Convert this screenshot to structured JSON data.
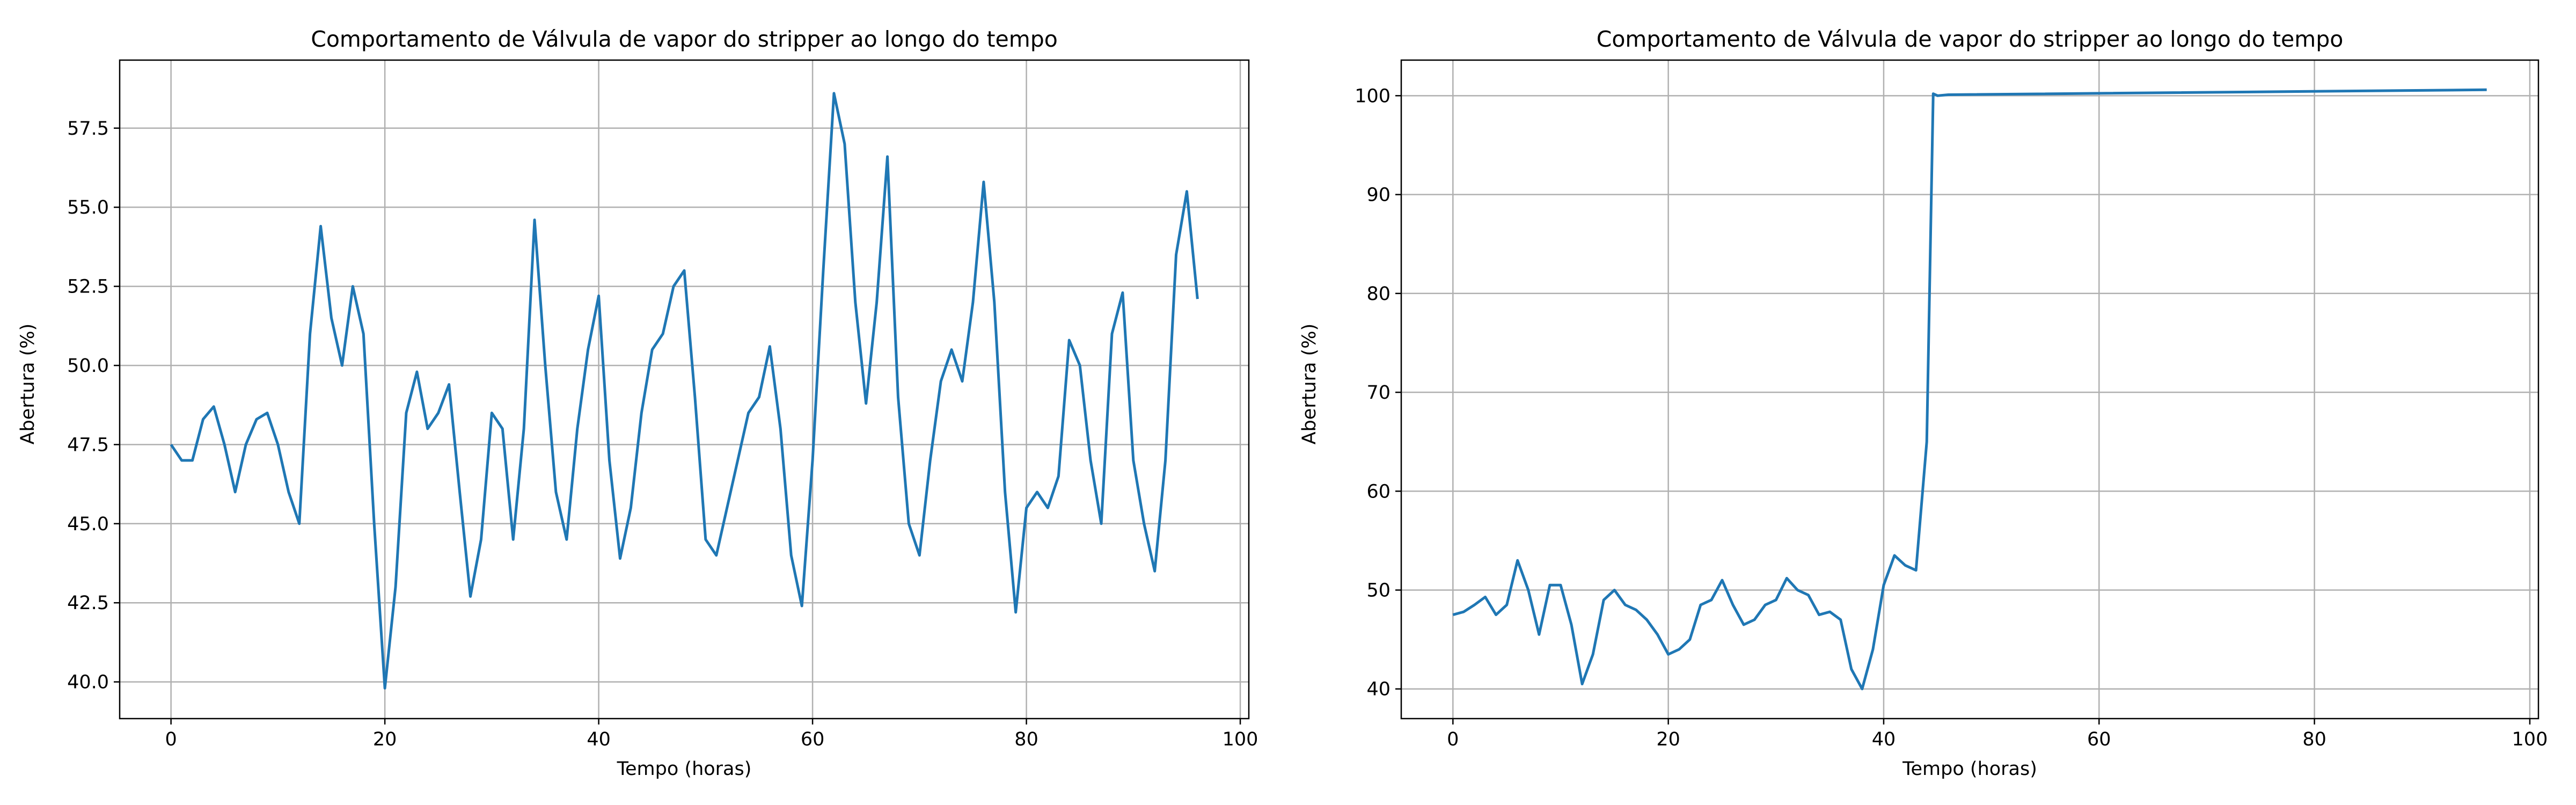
{
  "chart_data": [
    {
      "type": "line",
      "title": "Comportamento de Válvula de vapor do stripper ao longo do tempo",
      "x_label": "Tempo (horas)",
      "y_label": "Abertura (%)",
      "color": "#1f77b4",
      "grid": true,
      "x": [
        0,
        1,
        2,
        3,
        4,
        5,
        6,
        7,
        8,
        9,
        10,
        11,
        12,
        13,
        14,
        15,
        16,
        17,
        18,
        19,
        20,
        21,
        22,
        23,
        24,
        25,
        26,
        27,
        28,
        29,
        30,
        31,
        32,
        33,
        34,
        35,
        36,
        37,
        38,
        39,
        40,
        41,
        42,
        43,
        44,
        45,
        46,
        47,
        48,
        49,
        50,
        51,
        52,
        53,
        54,
        55,
        56,
        57,
        58,
        59,
        60,
        61,
        62,
        63,
        64,
        65,
        66,
        67,
        68,
        69,
        70,
        71,
        72,
        73,
        74,
        75,
        76,
        77,
        78,
        79,
        80,
        81,
        82,
        83,
        84,
        85,
        86,
        87,
        88,
        89,
        90,
        91,
        92,
        93,
        94,
        95,
        96
      ],
      "values": [
        47.5,
        47.0,
        47.0,
        48.3,
        48.7,
        47.5,
        46.0,
        47.5,
        48.3,
        48.5,
        47.5,
        46.0,
        45.0,
        51.0,
        54.4,
        51.5,
        50.0,
        52.5,
        51.0,
        45.0,
        39.8,
        43.0,
        48.5,
        49.8,
        48.0,
        48.5,
        49.4,
        46.0,
        42.7,
        44.5,
        48.5,
        48.0,
        44.5,
        48.0,
        54.6,
        50.0,
        46.0,
        44.5,
        48.0,
        50.5,
        52.2,
        47.0,
        43.9,
        45.5,
        48.5,
        50.5,
        51.0,
        52.5,
        53.0,
        49.0,
        44.5,
        44.0,
        45.5,
        47.0,
        48.5,
        49.0,
        50.6,
        48.0,
        44.0,
        42.4,
        47.0,
        53.0,
        58.6,
        57.0,
        52.0,
        48.8,
        52.0,
        56.6,
        49.0,
        45.0,
        44.0,
        47.0,
        49.5,
        50.5,
        49.5,
        52.0,
        55.8,
        52.0,
        46.0,
        42.2,
        45.5,
        46.0,
        45.5,
        46.5,
        50.8,
        50.0,
        47.0,
        45.0,
        51.0,
        52.3,
        47.0,
        45.0,
        43.5,
        47.0,
        53.5,
        55.5,
        52.1
      ],
      "xlim": [
        -4.8,
        100.8
      ],
      "xticks": [
        0,
        20,
        40,
        60,
        80,
        100
      ],
      "ylim": [
        38.84,
        59.65
      ],
      "yticks": [
        {
          "value": 40,
          "label": "40.0"
        },
        42.5,
        {
          "value": 45,
          "label": "45.0"
        },
        47.5,
        {
          "value": 50,
          "label": "50.0"
        },
        52.5,
        {
          "value": 55,
          "label": "55.0"
        },
        57.5
      ]
    },
    {
      "type": "line",
      "title": "Comportamento de Válvula de vapor do stripper ao longo do tempo",
      "x_label": "Tempo (horas)",
      "y_label": "Abertura (%)",
      "color": "#1f77b4",
      "grid": true,
      "x": [
        0,
        1,
        2,
        3,
        4,
        5,
        6,
        7,
        8,
        9,
        10,
        11,
        12,
        13,
        14,
        15,
        16,
        17,
        18,
        19,
        20,
        21,
        22,
        23,
        24,
        25,
        26,
        27,
        28,
        29,
        30,
        31,
        32,
        33,
        34,
        35,
        36,
        37,
        38,
        39,
        40,
        41,
        42,
        43,
        44,
        44.6,
        45,
        46,
        96
      ],
      "values": [
        47.5,
        47.8,
        48.5,
        49.3,
        47.5,
        48.5,
        53.0,
        50.0,
        45.5,
        50.5,
        50.5,
        46.5,
        40.5,
        43.5,
        49.0,
        50.0,
        48.5,
        48.0,
        47.0,
        45.5,
        43.5,
        44.0,
        45.0,
        48.5,
        49.0,
        51.0,
        48.5,
        46.5,
        47.0,
        48.5,
        49.0,
        51.2,
        50.0,
        49.5,
        47.5,
        47.8,
        47.0,
        42.0,
        40.0,
        44.0,
        50.5,
        53.5,
        52.5,
        52.0,
        65.0,
        100.2,
        100.0,
        100.1,
        100.6
      ],
      "xlim": [
        -4.8,
        100.8
      ],
      "xticks": [
        0,
        20,
        40,
        60,
        80,
        100
      ],
      "ylim": [
        37.0,
        103.6
      ],
      "yticks": [
        40,
        50,
        60,
        70,
        80,
        90,
        100
      ]
    }
  ]
}
